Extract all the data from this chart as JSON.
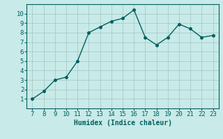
{
  "x": [
    7,
    8,
    9,
    10,
    11,
    12,
    13,
    14,
    15,
    16,
    17,
    18,
    19,
    20,
    21,
    22,
    23
  ],
  "y": [
    1,
    1.8,
    3.0,
    3.3,
    5.0,
    8.0,
    8.6,
    9.2,
    9.5,
    10.4,
    7.5,
    6.7,
    7.5,
    8.9,
    8.4,
    7.5,
    7.7
  ],
  "line_color": "#006060",
  "marker_color": "#006060",
  "bg_color": "#c8eae8",
  "grid_color": "#a8ccc8",
  "xlabel": "Humidex (Indice chaleur)",
  "xlim": [
    6.5,
    23.5
  ],
  "ylim": [
    0.0,
    11.0
  ],
  "yticks": [
    1,
    2,
    3,
    4,
    5,
    6,
    7,
    8,
    9,
    10
  ],
  "xticks": [
    7,
    8,
    9,
    10,
    11,
    12,
    13,
    14,
    15,
    16,
    17,
    18,
    19,
    20,
    21,
    22,
    23
  ],
  "xlabel_fontsize": 7,
  "tick_fontsize": 6.5,
  "marker_size": 2.5,
  "line_width": 1.0
}
